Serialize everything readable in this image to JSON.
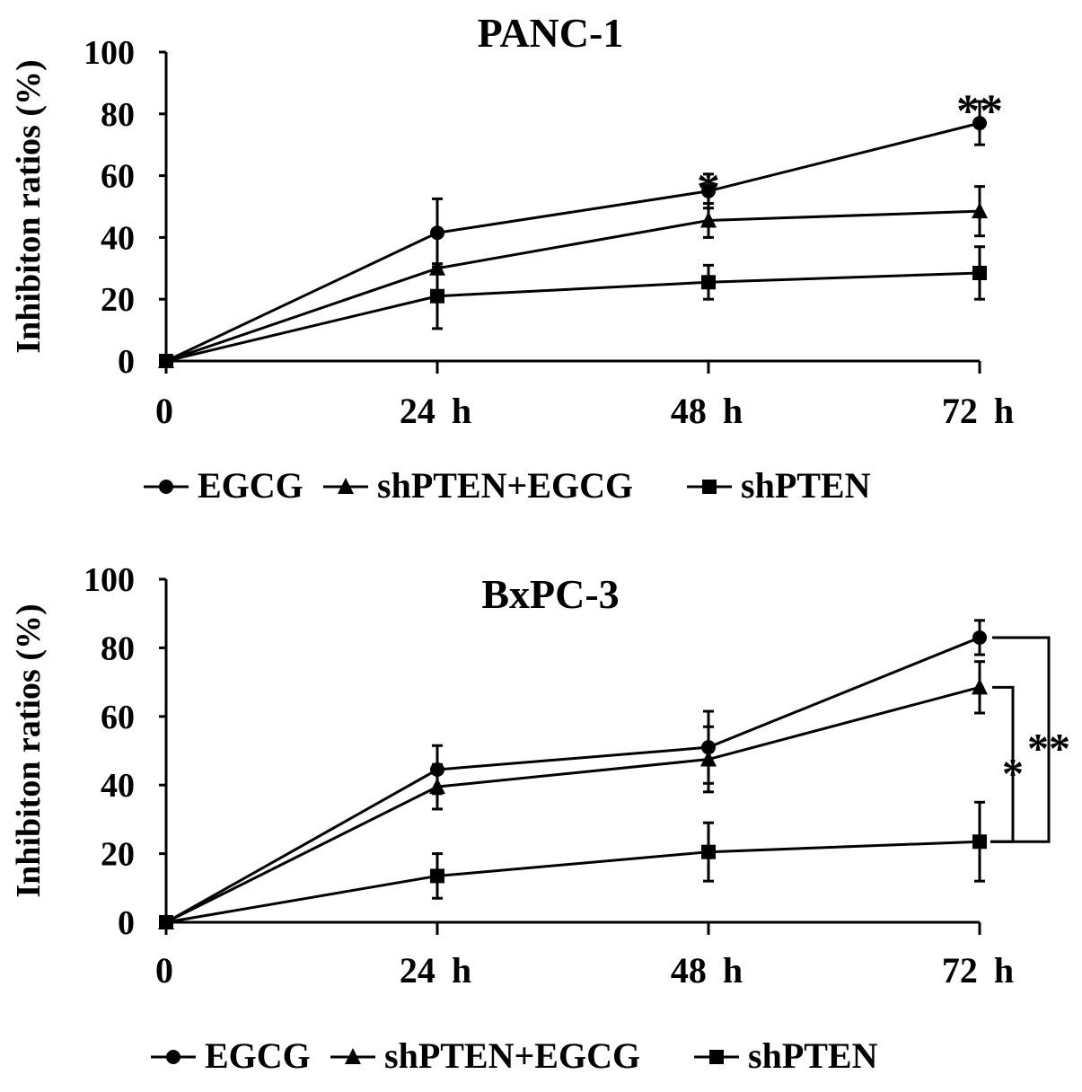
{
  "chart_data": [
    {
      "type": "line",
      "title": "PANC-1",
      "xlabel": "",
      "ylabel": "Inhibiton ratios (%)",
      "categories": [
        "0",
        "24 h",
        "48 h",
        "72 h"
      ],
      "ylim": [
        0,
        100
      ],
      "yticks": [
        0,
        20,
        40,
        60,
        80,
        100
      ],
      "grid": false,
      "legend_position": "bottom",
      "series": [
        {
          "name": "EGCG",
          "marker": "circle",
          "values": [
            0,
            41.5,
            55,
            77
          ],
          "errors": [
            0,
            11,
            5.5,
            7
          ]
        },
        {
          "name": "shPTEN+EGCG",
          "marker": "triangle",
          "values": [
            0,
            30,
            45.5,
            48.5
          ],
          "errors": [
            0,
            0,
            5.5,
            8
          ]
        },
        {
          "name": "shPTEN",
          "marker": "square",
          "values": [
            0,
            21,
            25.5,
            28.5
          ],
          "errors": [
            0,
            10.5,
            5.5,
            8.5
          ]
        }
      ],
      "annotations": [
        {
          "text": "*",
          "category": "48 h",
          "y": 62
        },
        {
          "text": "**",
          "category": "72 h",
          "y": 87
        }
      ]
    },
    {
      "type": "line",
      "title": "BxPC-3",
      "xlabel": "",
      "ylabel": "Inhibiton ratios (%)",
      "categories": [
        "0",
        "24 h",
        "48 h",
        "72 h"
      ],
      "ylim": [
        0,
        100
      ],
      "yticks": [
        0,
        20,
        40,
        60,
        80,
        100
      ],
      "grid": false,
      "legend_position": "bottom",
      "series": [
        {
          "name": "EGCG",
          "marker": "circle",
          "values": [
            0,
            44.5,
            51,
            83
          ],
          "errors": [
            0,
            7,
            10.5,
            5
          ]
        },
        {
          "name": "shPTEN+EGCG",
          "marker": "triangle",
          "values": [
            0,
            39.5,
            47.5,
            68.5
          ],
          "errors": [
            0,
            6.5,
            9.5,
            7.5
          ]
        },
        {
          "name": "shPTEN",
          "marker": "square",
          "values": [
            0,
            13.5,
            20.5,
            23.5
          ],
          "errors": [
            0,
            6.5,
            8.5,
            11.5
          ]
        }
      ],
      "annotations": [
        {
          "text": "*",
          "type": "bracket",
          "category": "72 h",
          "between": [
            "shPTEN+EGCG",
            "shPTEN"
          ]
        },
        {
          "text": "**",
          "type": "bracket",
          "category": "72 h",
          "between": [
            "EGCG",
            "shPTEN"
          ]
        }
      ]
    }
  ]
}
